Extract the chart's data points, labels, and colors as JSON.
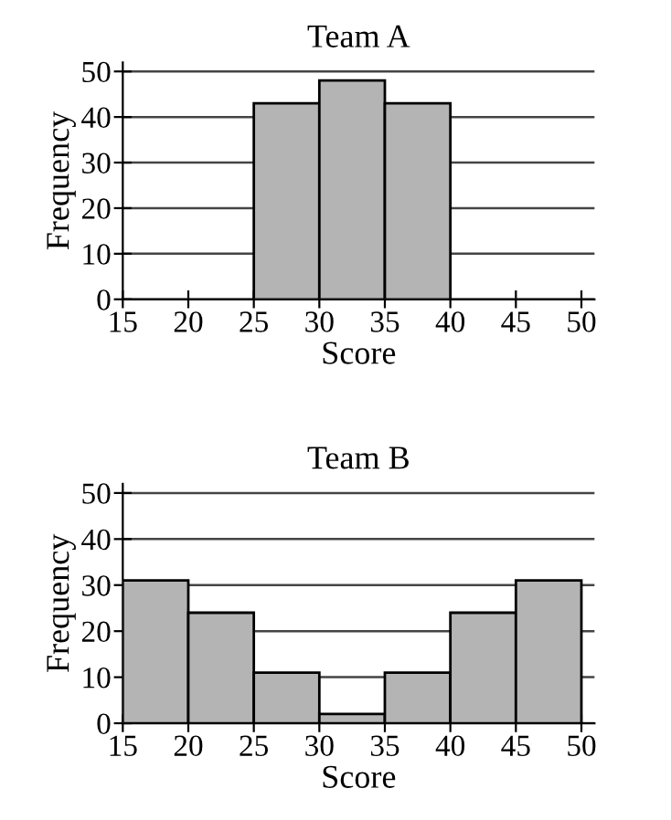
{
  "chart_data": [
    {
      "type": "histogram",
      "title": "Team A",
      "xlabel": "Score",
      "ylabel": "Frequency",
      "bins": [
        15,
        20,
        25,
        30,
        35,
        40,
        45,
        50
      ],
      "values": [
        0,
        0,
        43,
        48,
        43,
        0,
        0
      ],
      "color": "#b4b4b4",
      "xlim": [
        15,
        51
      ],
      "ylim": [
        0,
        52
      ],
      "xticks": [
        15,
        20,
        25,
        30,
        35,
        40,
        45,
        50
      ],
      "yticks": [
        0,
        10,
        20,
        30,
        40,
        50
      ],
      "grid": "y"
    },
    {
      "type": "histogram",
      "title": "Team B",
      "xlabel": "Score",
      "ylabel": "Frequency",
      "bins": [
        15,
        20,
        25,
        30,
        35,
        40,
        45,
        50
      ],
      "values": [
        31,
        24,
        11,
        2,
        11,
        24,
        31
      ],
      "color": "#b4b4b4",
      "xlim": [
        15,
        51
      ],
      "ylim": [
        0,
        52
      ],
      "xticks": [
        15,
        20,
        25,
        30,
        35,
        40,
        45,
        50
      ],
      "yticks": [
        0,
        10,
        20,
        30,
        40,
        50
      ],
      "grid": "y"
    }
  ]
}
